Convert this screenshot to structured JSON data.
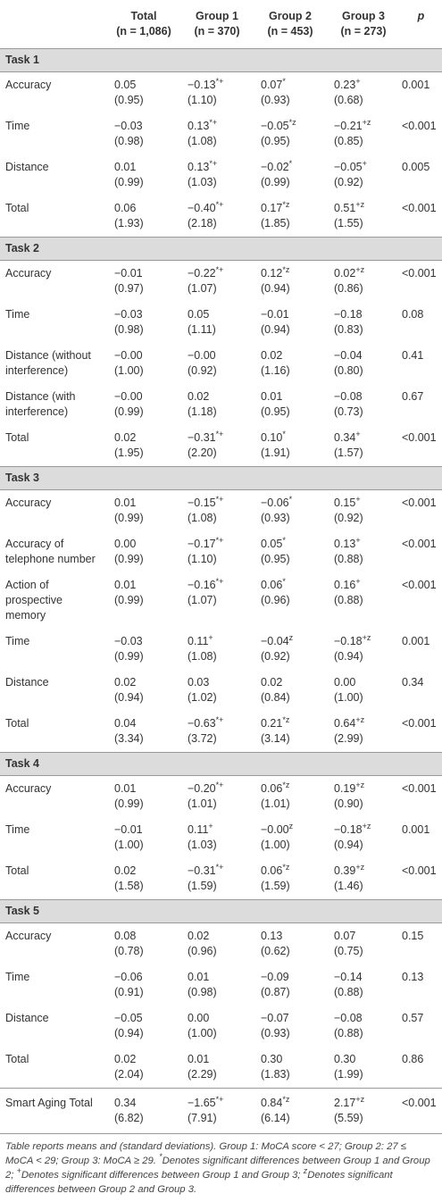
{
  "table": {
    "columns": [
      {
        "label": "Total",
        "n": "(n = 1,086)"
      },
      {
        "label": "Group 1",
        "n": "(n = 370)"
      },
      {
        "label": "Group 2",
        "n": "(n = 453)"
      },
      {
        "label": "Group 3",
        "n": "(n = 273)"
      }
    ],
    "p_header": "p",
    "sections": [
      {
        "title": "Task 1",
        "rows": [
          {
            "label": "Accuracy",
            "cells": [
              [
                "0.05",
                "(0.95)"
              ],
              [
                "−0.13",
                "(1.10)",
                "*+"
              ],
              [
                "0.07",
                "(0.93)",
                "*"
              ],
              [
                "0.23",
                "(0.68)",
                "+"
              ]
            ],
            "p": "0.001"
          },
          {
            "label": "Time",
            "cells": [
              [
                "−0.03",
                "(0.98)"
              ],
              [
                "0.13",
                "(1.08)",
                "*+"
              ],
              [
                "−0.05",
                "(0.95)",
                "*z"
              ],
              [
                "−0.21",
                "(0.85)",
                "+z"
              ]
            ],
            "p": "<0.001"
          },
          {
            "label": "Distance",
            "cells": [
              [
                "0.01",
                "(0.99)"
              ],
              [
                "0.13",
                "(1.03)",
                "*+"
              ],
              [
                "−0.02",
                "(0.99)",
                "*"
              ],
              [
                "−0.05",
                "(0.92)",
                "+"
              ]
            ],
            "p": "0.005"
          },
          {
            "label": "Total",
            "cells": [
              [
                "0.06",
                "(1.93)"
              ],
              [
                "−0.40",
                "(2.18)",
                "*+"
              ],
              [
                "0.17",
                "(1.85)",
                "*z"
              ],
              [
                "0.51",
                "(1.55)",
                "+z"
              ]
            ],
            "p": "<0.001"
          }
        ]
      },
      {
        "title": "Task 2",
        "rows": [
          {
            "label": "Accuracy",
            "cells": [
              [
                "−0.01",
                "(0.97)"
              ],
              [
                "−0.22",
                "(1.07)",
                "*+"
              ],
              [
                "0.12",
                "(0.94)",
                "*z"
              ],
              [
                "0.02",
                "(0.86)",
                "+z"
              ]
            ],
            "p": "<0.001"
          },
          {
            "label": "Time",
            "cells": [
              [
                "−0.03",
                "(0.98)"
              ],
              [
                "0.05",
                "(1.11)"
              ],
              [
                "−0.01",
                "(0.94)"
              ],
              [
                "−0.18",
                "(0.83)"
              ]
            ],
            "p": "0.08"
          },
          {
            "label": "Distance (without interference)",
            "cells": [
              [
                "−0.00",
                "(1.00)"
              ],
              [
                "−0.00",
                "(0.92)"
              ],
              [
                "0.02",
                "(1.16)"
              ],
              [
                "−0.04",
                "(0.80)"
              ]
            ],
            "p": "0.41"
          },
          {
            "label": "Distance (with interference)",
            "cells": [
              [
                "−0.00",
                "(0.99)"
              ],
              [
                "0.02",
                "(1.18)"
              ],
              [
                "0.01",
                "(0.95)"
              ],
              [
                "−0.08",
                "(0.73)"
              ]
            ],
            "p": "0.67"
          },
          {
            "label": "Total",
            "cells": [
              [
                "0.02",
                "(1.95)"
              ],
              [
                "−0.31",
                "(2.20)",
                "*+"
              ],
              [
                "0.10",
                "(1.91)",
                "*"
              ],
              [
                "0.34",
                "(1.57)",
                "+"
              ]
            ],
            "p": "<0.001"
          }
        ]
      },
      {
        "title": "Task 3",
        "rows": [
          {
            "label": "Accuracy",
            "cells": [
              [
                "0.01",
                "(0.99)"
              ],
              [
                "−0.15",
                "(1.08)",
                "*+"
              ],
              [
                "−0.06",
                "(0.93)",
                "*"
              ],
              [
                "0.15",
                "(0.92)",
                "+"
              ]
            ],
            "p": "<0.001"
          },
          {
            "label": "Accuracy of telephone number",
            "cells": [
              [
                "0.00",
                "(0.99)"
              ],
              [
                "−0.17",
                "(1.10)",
                "*+"
              ],
              [
                "0.05",
                "(0.95)",
                "*"
              ],
              [
                "0.13",
                "(0.88)",
                "+"
              ]
            ],
            "p": "<0.001"
          },
          {
            "label": "Action of prospective memory",
            "cells": [
              [
                "0.01",
                "(0.99)"
              ],
              [
                "−0.16",
                "(1.07)",
                "*+"
              ],
              [
                "0.06",
                "(0.96)",
                "*"
              ],
              [
                "0.16",
                "(0.88)",
                "+"
              ]
            ],
            "p": "<0.001"
          },
          {
            "label": "Time",
            "cells": [
              [
                "−0.03",
                "(0.99)"
              ],
              [
                "0.11",
                "(1.08)",
                "+"
              ],
              [
                "−0.04",
                "(0.92)",
                "z"
              ],
              [
                "−0.18",
                "(0.94)",
                "+z"
              ]
            ],
            "p": "0.001"
          },
          {
            "label": "Distance",
            "cells": [
              [
                "0.02",
                "(0.94)"
              ],
              [
                "0.03",
                "(1.02)"
              ],
              [
                "0.02",
                "(0.84)"
              ],
              [
                "0.00",
                "(1.00)"
              ]
            ],
            "p": "0.34"
          },
          {
            "label": "Total",
            "cells": [
              [
                "0.04",
                "(3.34)"
              ],
              [
                "−0.63",
                "(3.72)",
                "*+"
              ],
              [
                "0.21",
                "(3.14)",
                "*z"
              ],
              [
                "0.64",
                "(2.99)",
                "+z"
              ]
            ],
            "p": "<0.001"
          }
        ]
      },
      {
        "title": "Task 4",
        "rows": [
          {
            "label": "Accuracy",
            "cells": [
              [
                "0.01",
                "(0.99)"
              ],
              [
                "−0.20",
                "(1.01)",
                "*+"
              ],
              [
                "0.06",
                "(1.01)",
                "*z"
              ],
              [
                "0.19",
                "(0.90)",
                "+z"
              ]
            ],
            "p": "<0.001"
          },
          {
            "label": "Time",
            "cells": [
              [
                "−0.01",
                "(1.00)"
              ],
              [
                "0.11",
                "(1.03)",
                "+"
              ],
              [
                "−0.00",
                "(1.00)",
                "z"
              ],
              [
                "−0.18",
                "(0.94)",
                "+z"
              ]
            ],
            "p": "0.001"
          },
          {
            "label": "Total",
            "cells": [
              [
                "0.02",
                "(1.58)"
              ],
              [
                "−0.31",
                "(1.59)",
                "*+"
              ],
              [
                "0.06",
                "(1.59)",
                "*z"
              ],
              [
                "0.39",
                "(1.46)",
                "+z"
              ]
            ],
            "p": "<0.001"
          }
        ]
      },
      {
        "title": "Task 5",
        "rows": [
          {
            "label": "Accuracy",
            "cells": [
              [
                "0.08",
                "(0.78)"
              ],
              [
                "0.02",
                "(0.96)"
              ],
              [
                "0.13",
                "(0.62)"
              ],
              [
                "0.07",
                "(0.75)"
              ]
            ],
            "p": "0.15"
          },
          {
            "label": "Time",
            "cells": [
              [
                "−0.06",
                "(0.91)"
              ],
              [
                "0.01",
                "(0.98)"
              ],
              [
                "−0.09",
                "(0.87)"
              ],
              [
                "−0.14",
                "(0.88)"
              ]
            ],
            "p": "0.13"
          },
          {
            "label": "Distance",
            "cells": [
              [
                "−0.05",
                "(0.94)"
              ],
              [
                "0.00",
                "(1.00)"
              ],
              [
                "−0.07",
                "(0.93)"
              ],
              [
                "−0.08",
                "(0.88)"
              ]
            ],
            "p": "0.57"
          },
          {
            "label": "Total",
            "cells": [
              [
                "0.02",
                "(2.04)"
              ],
              [
                "0.01",
                "(2.29)"
              ],
              [
                "0.30",
                "(1.83)"
              ],
              [
                "0.30",
                "(1.99)"
              ]
            ],
            "p": "0.86"
          }
        ]
      }
    ],
    "grand_total": {
      "label": "Smart Aging Total",
      "cells": [
        [
          "0.34",
          "(6.82)"
        ],
        [
          "−1.65",
          "(7.91)",
          "*+"
        ],
        [
          "0.84",
          "(6.14)",
          "*z"
        ],
        [
          "2.17",
          "(5.59)",
          "+z"
        ]
      ],
      "p": "<0.001"
    }
  },
  "note": [
    "Table reports means and (standard deviations). Group 1: MoCA score < 27; Group 2: 27 ≤ MoCA < 29; Group 3: MoCA ≥ 29. ",
    "*",
    "Denotes significant differences between Group 1 and Group 2; ",
    "+",
    "Denotes significant differences between Group 1 and Group 3; ",
    "z",
    "Denotes significant differences between Group 2 and Group 3."
  ]
}
